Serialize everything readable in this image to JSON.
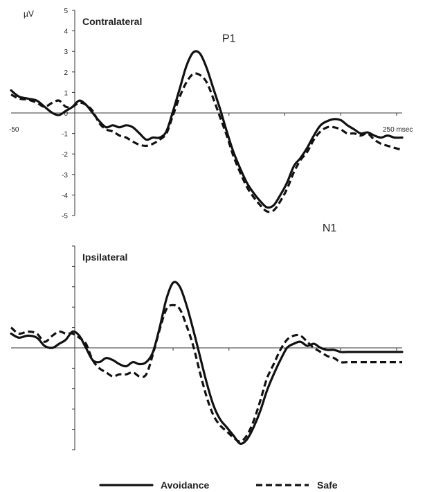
{
  "y_unit": "µV",
  "x_start_label": "-50",
  "x_end_label": "250 msec",
  "legend": {
    "avoidance_label": "Avoidance",
    "safe_label": "Safe"
  },
  "chart_data": [
    {
      "type": "line",
      "title": "Contralateral",
      "ylabel": "µV",
      "xlim": [
        -95,
        255
      ],
      "ylim": [
        -5,
        5
      ],
      "y_ticks": [
        5,
        4,
        3,
        2,
        1,
        0,
        -1,
        -2,
        -3,
        -4,
        -5
      ],
      "x_labels": [
        "-50",
        "250 msec"
      ],
      "annotations": [
        {
          "text": "P1",
          "x": 100,
          "y": 3.05
        },
        {
          "text": "N1",
          "x": 190,
          "y": -4.7
        }
      ],
      "x": [
        -95,
        -88,
        -80,
        -72,
        -65,
        -58,
        -52,
        -46,
        -40,
        -34,
        -28,
        -22,
        -16,
        -10,
        -4,
        2,
        8,
        14,
        20,
        26,
        32,
        38,
        44,
        50,
        56,
        62,
        68,
        74,
        80,
        86,
        92,
        98,
        104,
        110,
        116,
        122,
        128,
        134,
        140,
        146,
        152,
        158,
        164,
        170,
        176,
        182,
        188,
        194,
        200,
        206,
        212,
        218,
        224,
        230,
        236,
        242,
        248,
        255
      ],
      "series": [
        {
          "name": "Avoidance",
          "values": [
            1.1,
            0.8,
            0.7,
            0.6,
            0.3,
            0.0,
            -0.1,
            0.1,
            0.3,
            0.6,
            0.4,
            0.0,
            -0.4,
            -0.7,
            -0.6,
            -0.7,
            -0.6,
            -0.7,
            -1.0,
            -1.3,
            -1.2,
            -1.2,
            -0.9,
            0.1,
            1.2,
            2.3,
            2.95,
            2.9,
            2.2,
            1.2,
            0.2,
            -0.9,
            -1.9,
            -2.7,
            -3.4,
            -3.9,
            -4.3,
            -4.6,
            -4.5,
            -4.0,
            -3.4,
            -2.6,
            -2.2,
            -1.7,
            -1.1,
            -0.6,
            -0.4,
            -0.3,
            -0.35,
            -0.6,
            -0.8,
            -1.0,
            -0.95,
            -1.1,
            -1.2,
            -1.1,
            -1.2,
            -1.2
          ]
        },
        {
          "name": "Safe",
          "values": [
            0.9,
            0.7,
            0.65,
            0.5,
            0.3,
            0.5,
            0.6,
            0.3,
            0.3,
            0.5,
            0.4,
            0.1,
            -0.5,
            -0.8,
            -0.9,
            -1.1,
            -1.2,
            -1.4,
            -1.55,
            -1.6,
            -1.5,
            -1.3,
            -1.0,
            -0.1,
            0.8,
            1.5,
            1.9,
            1.85,
            1.5,
            0.7,
            -0.2,
            -1.1,
            -2.1,
            -2.9,
            -3.6,
            -4.1,
            -4.5,
            -4.8,
            -4.75,
            -4.3,
            -3.7,
            -2.9,
            -2.3,
            -1.9,
            -1.3,
            -0.9,
            -0.7,
            -0.7,
            -0.8,
            -1.0,
            -1.0,
            -1.1,
            -1.0,
            -1.3,
            -1.5,
            -1.6,
            -1.7,
            -1.8
          ]
        }
      ]
    },
    {
      "type": "line",
      "title": "Ipsilateral",
      "ylim": [
        -5,
        5
      ],
      "y_ticks": [
        5,
        4,
        3,
        2,
        1,
        0,
        -1,
        -2,
        -3,
        -4,
        -5
      ],
      "xlim": [
        -95,
        255
      ],
      "x": [
        -95,
        -88,
        -80,
        -72,
        -65,
        -58,
        -52,
        -46,
        -40,
        -34,
        -28,
        -22,
        -16,
        -10,
        -4,
        2,
        8,
        14,
        20,
        26,
        32,
        38,
        44,
        50,
        56,
        62,
        68,
        74,
        80,
        86,
        92,
        98,
        104,
        110,
        116,
        122,
        128,
        134,
        140,
        146,
        152,
        158,
        164,
        170,
        176,
        182,
        188,
        194,
        200,
        206,
        212,
        218,
        224,
        230,
        236,
        242,
        248,
        255
      ],
      "series": [
        {
          "name": "Avoidance",
          "values": [
            0.7,
            0.5,
            0.6,
            0.5,
            0.1,
            0.0,
            0.2,
            0.4,
            0.8,
            0.6,
            0.0,
            -0.6,
            -0.7,
            -0.5,
            -0.6,
            -0.8,
            -0.9,
            -0.7,
            -0.8,
            -0.7,
            -0.2,
            1.0,
            2.4,
            3.2,
            3.0,
            2.1,
            0.9,
            -0.4,
            -1.7,
            -2.8,
            -3.5,
            -3.9,
            -4.3,
            -4.7,
            -4.5,
            -3.9,
            -3.1,
            -2.1,
            -1.3,
            -0.6,
            0.0,
            0.2,
            0.3,
            0.1,
            0.2,
            0.0,
            -0.1,
            -0.1,
            -0.2,
            -0.2,
            -0.2,
            -0.2,
            -0.2,
            -0.2,
            -0.2,
            -0.2,
            -0.2,
            -0.2
          ]
        },
        {
          "name": "Safe",
          "values": [
            1.0,
            0.7,
            0.8,
            0.7,
            0.3,
            0.6,
            0.8,
            0.7,
            0.7,
            0.5,
            0.2,
            -0.6,
            -1.0,
            -1.2,
            -1.4,
            -1.3,
            -1.3,
            -1.2,
            -1.4,
            -1.3,
            -0.3,
            0.9,
            1.9,
            2.1,
            1.9,
            1.1,
            0.1,
            -1.2,
            -2.4,
            -3.3,
            -3.8,
            -4.1,
            -4.4,
            -4.6,
            -4.3,
            -3.6,
            -2.6,
            -1.5,
            -0.8,
            -0.1,
            0.4,
            0.6,
            0.6,
            0.3,
            0.0,
            -0.2,
            -0.4,
            -0.5,
            -0.7,
            -0.7,
            -0.7,
            -0.7,
            -0.7,
            -0.7,
            -0.7,
            -0.7,
            -0.7,
            -0.7
          ]
        }
      ]
    }
  ]
}
